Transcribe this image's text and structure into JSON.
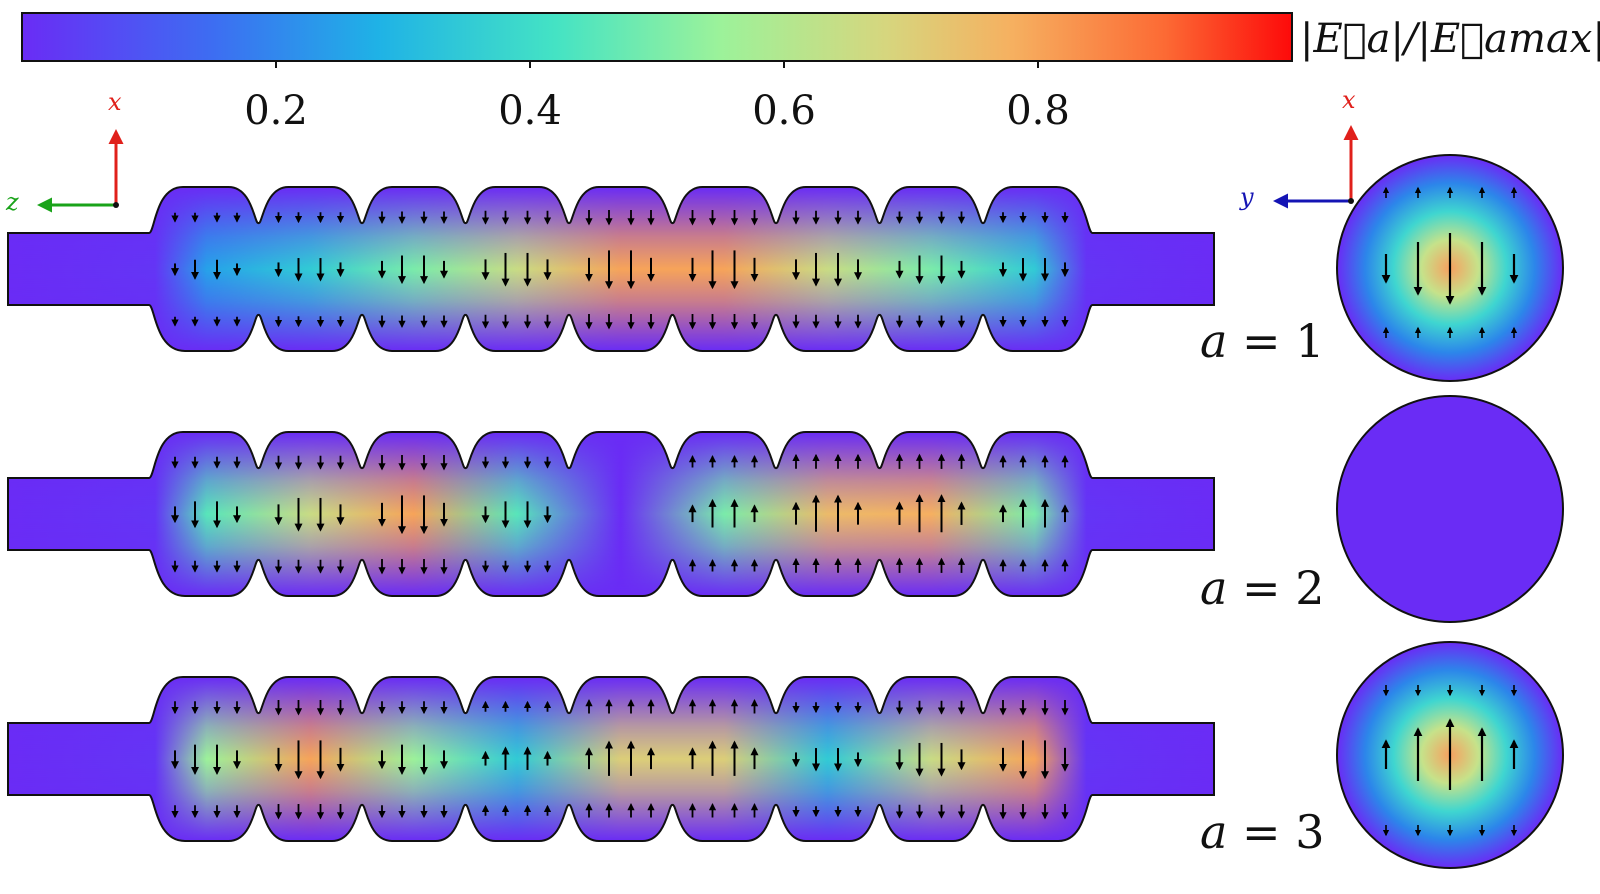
{
  "colorbar": {
    "ticks": [
      "0.2",
      "0.4",
      "0.6",
      "0.8"
    ],
    "tick_values": [
      0.2,
      0.4,
      0.6,
      0.8
    ],
    "label": "|E⃗a|/|E⃗amax|",
    "range": [
      0,
      1
    ],
    "colormap": "rainbow"
  },
  "axes_side": {
    "vertical": "x",
    "horizontal": "z",
    "vertical_color": "#e0201b",
    "horizontal_color": "#1aa31a"
  },
  "axes_cross": {
    "vertical": "x",
    "horizontal": "y",
    "vertical_color": "#e0201b",
    "horizontal_color": "#1414b4"
  },
  "colors": {
    "low": "#6a2cf5",
    "outline": "#111111",
    "arrow": "#000000"
  },
  "modes": [
    {
      "label_var": "a",
      "label_eq": " = ",
      "label_num": "1",
      "cell_field": [
        0.25,
        0.35,
        0.5,
        0.65,
        0.8,
        0.8,
        0.65,
        0.5,
        0.35
      ],
      "cross_section": "dipole"
    },
    {
      "label_var": "a",
      "label_eq": " = ",
      "label_num": "2",
      "cell_field": [
        0.45,
        0.65,
        0.8,
        0.45,
        0.0,
        0.5,
        0.75,
        0.78,
        0.5
      ],
      "cross_section": "zero"
    },
    {
      "label_var": "a",
      "label_eq": " = ",
      "label_num": "3",
      "cell_field": [
        0.55,
        0.8,
        0.55,
        0.35,
        0.7,
        0.7,
        0.35,
        0.65,
        0.8
      ],
      "cross_section": "dipole"
    }
  ]
}
